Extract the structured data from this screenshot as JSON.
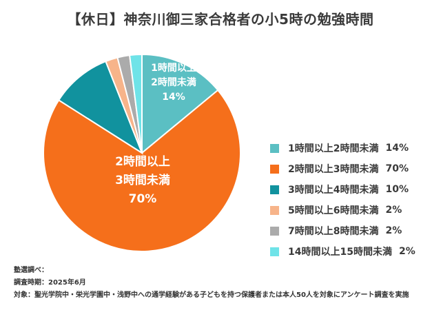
{
  "chart_data": {
    "type": "pie",
    "title": "【休日】神奈川御三家合格者の小5時の勉強時間",
    "categories": [
      "1時間以上2時間未満",
      "2時間以上3時間未満",
      "3時間以上4時間未満",
      "5時間以上6時間未満",
      "7時間以上8時間未満",
      "14時間以上15時間未満"
    ],
    "values": [
      14,
      70,
      10,
      2,
      2,
      2
    ],
    "value_labels": [
      "14%",
      "70%",
      "10%",
      "2%",
      "2%",
      "2%"
    ],
    "slice_labels": [
      {
        "lines": [
          "1時間以上",
          "2時間未満",
          "14%"
        ]
      },
      {
        "lines": [
          "2時間以上",
          "3時間未満",
          "70%"
        ]
      }
    ],
    "colors": [
      "#5BBFC3",
      "#F56F1B",
      "#11929E",
      "#F7B48A",
      "#ABABAB",
      "#6FE3E8"
    ],
    "legend_position": "right",
    "start_angle": "12 o'clock",
    "direction": "clockwise"
  },
  "footnote": {
    "line1": "塾選調べ：",
    "line2": "調査時期：2025年6月",
    "line3": "対象：聖光学院中・栄光学園中・浅野中への通学経験がある子どもを持つ保護者または本人50人を対象にアンケート調査を実施"
  }
}
